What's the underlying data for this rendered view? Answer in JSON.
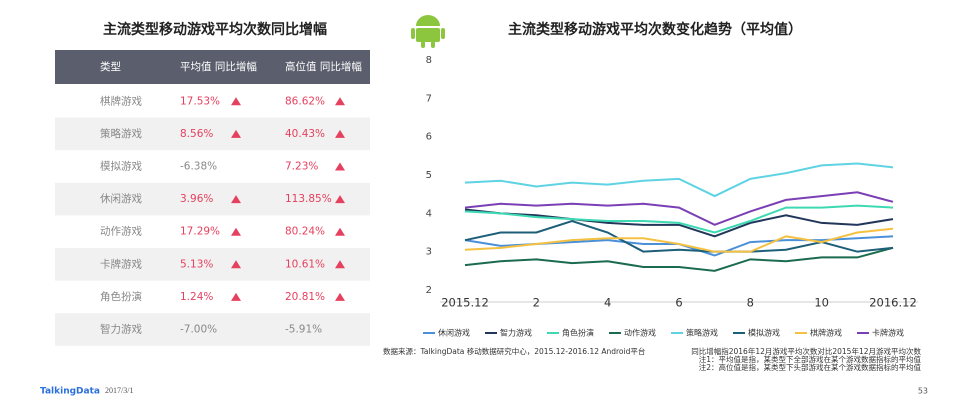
{
  "table": {
    "title": "主流类型移动游戏平均次数同比增幅",
    "header": [
      "类型",
      "平均值 同比增幅",
      "高位值 同比增幅"
    ],
    "rows": [
      [
        "棋牌游戏",
        "17.53%",
        "86.62%"
      ],
      [
        "策略游戏",
        "8.56%",
        "40.43%"
      ],
      [
        "模拟游戏",
        "-6.38%",
        "7.23%"
      ],
      [
        "休闲游戏",
        "3.96%",
        "113.85%"
      ],
      [
        "动作游戏",
        "17.29%",
        "80.24%"
      ],
      [
        "卡牌游戏",
        "5.13%",
        "10.61%"
      ],
      [
        "角色扮演",
        "1.24%",
        "20.81%"
      ],
      [
        "智力游戏",
        "-7.00%",
        "-5.91%"
      ]
    ]
  },
  "chart_data": {
    "type": "line",
    "title": "主流类型移动游戏平均次数变化趋势（平均值）",
    "categories": [
      "2015.12",
      null,
      "2",
      null,
      "4",
      null,
      "6",
      null,
      "8",
      null,
      "10",
      null,
      "2016.12"
    ],
    "ylim": [
      2,
      8
    ],
    "yticks": [
      2,
      3,
      4,
      5,
      6,
      7,
      8
    ],
    "grid": false,
    "series": [
      {
        "name": "休闲游戏",
        "color": "#4a90d9",
        "values": [
          3.3,
          3.15,
          3.2,
          3.25,
          3.3,
          3.2,
          3.2,
          2.9,
          3.25,
          3.3,
          3.3,
          3.35,
          3.4
        ]
      },
      {
        "name": "智力游戏",
        "color": "#22365a",
        "values": [
          4.1,
          4.0,
          3.95,
          3.85,
          3.75,
          3.7,
          3.7,
          3.4,
          3.75,
          3.95,
          3.75,
          3.7,
          3.85
        ]
      },
      {
        "name": "角色扮演",
        "color": "#3dd9b3",
        "values": [
          4.05,
          4.0,
          3.9,
          3.85,
          3.8,
          3.8,
          3.75,
          3.5,
          3.8,
          4.15,
          4.15,
          4.2,
          4.15
        ]
      },
      {
        "name": "动作游戏",
        "color": "#1b6b4f",
        "values": [
          2.65,
          2.75,
          2.8,
          2.7,
          2.75,
          2.6,
          2.6,
          2.5,
          2.8,
          2.75,
          2.85,
          2.85,
          3.1
        ]
      },
      {
        "name": "策略游戏",
        "color": "#5fd3e3",
        "values": [
          4.8,
          4.85,
          4.7,
          4.8,
          4.75,
          4.85,
          4.9,
          4.45,
          4.9,
          5.05,
          5.25,
          5.3,
          5.2
        ]
      },
      {
        "name": "模拟游戏",
        "color": "#1d5e78",
        "values": [
          3.3,
          3.5,
          3.5,
          3.8,
          3.5,
          3.0,
          3.05,
          3.0,
          3.0,
          3.05,
          3.25,
          3.0,
          3.1
        ]
      },
      {
        "name": "棋牌游戏",
        "color": "#f5c142",
        "values": [
          3.05,
          3.1,
          3.2,
          3.3,
          3.35,
          3.35,
          3.2,
          3.0,
          3.0,
          3.4,
          3.25,
          3.5,
          3.6
        ]
      },
      {
        "name": "卡牌游戏",
        "color": "#7b3fb5",
        "values": [
          4.15,
          4.25,
          4.2,
          4.25,
          4.2,
          4.25,
          4.15,
          3.7,
          4.05,
          4.35,
          4.45,
          4.55,
          4.3
        ]
      }
    ]
  },
  "footer": {
    "source": "数据来源：TalkingData 移动数据研究中心，2015.12-2016.12 Android平台",
    "notes": [
      "同比增幅指2016年12月游戏平均次数对比2015年12月游戏平均次数",
      "注1：平均值是指，某类型下全部游戏在某个游戏数据指标的平均值",
      "注2：高位值是指，某类型下头部游戏在某个游戏数据指标的平均值"
    ],
    "brand": "TalkingData",
    "date": "2017/3/1",
    "page": "53"
  }
}
